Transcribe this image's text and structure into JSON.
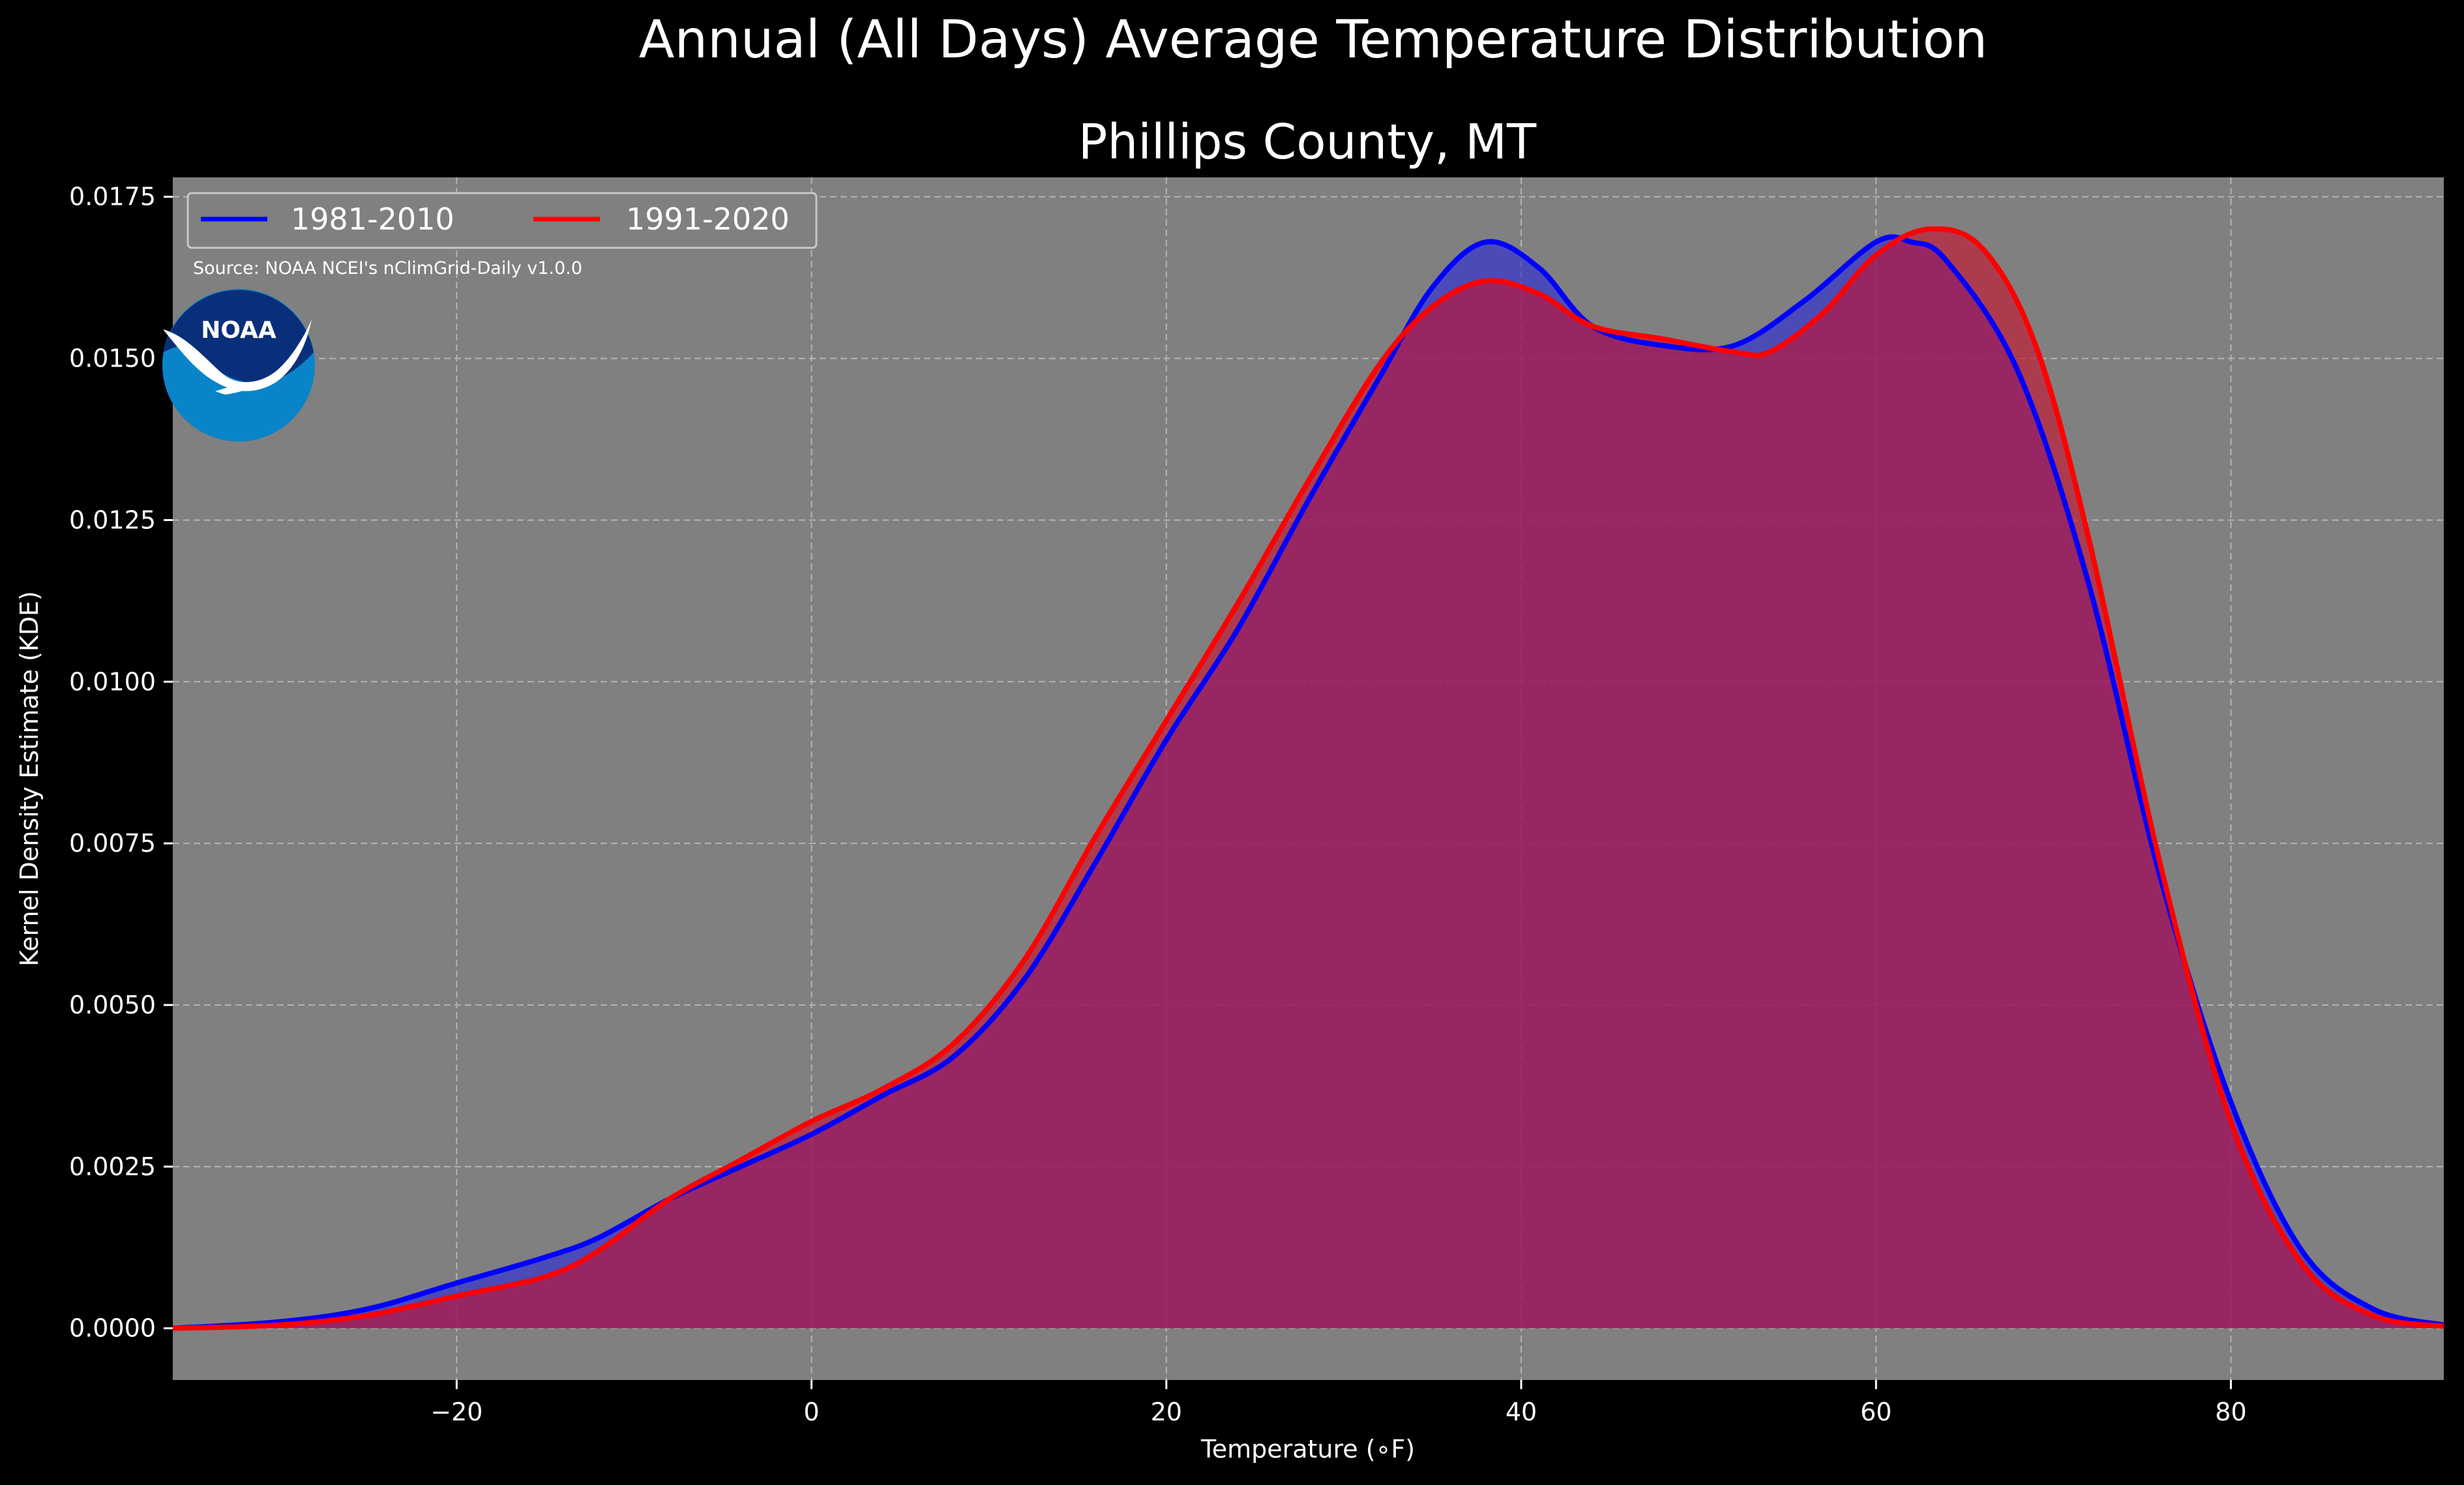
{
  "chart_data": {
    "type": "area",
    "title": "Annual (All Days) Average Temperature Distribution",
    "subtitle": "Phillips County, MT",
    "xlabel": "Temperature (∘F)",
    "ylabel": "Kernel Density Estimate (KDE)",
    "xlim": [
      -36,
      92
    ],
    "ylim": [
      -0.0008,
      0.0178
    ],
    "x_ticks": [
      -20,
      0,
      20,
      40,
      60,
      80
    ],
    "x_tick_labels": [
      "−20",
      "0",
      "20",
      "40",
      "60",
      "80"
    ],
    "y_ticks": [
      0.0,
      0.0025,
      0.005,
      0.0075,
      0.01,
      0.0125,
      0.015,
      0.0175
    ],
    "y_tick_labels": [
      "0.0000",
      "0.0025",
      "0.0050",
      "0.0075",
      "0.0100",
      "0.0125",
      "0.0150",
      "0.0175"
    ],
    "grid": true,
    "legend_position": "top-left",
    "source_note": "Source: NOAA NCEI's nClimGrid-Daily v1.0.0",
    "logo_text": "NOAA",
    "series": [
      {
        "name": "1981-2010",
        "color": "#0000ff",
        "fill_color": "#2a2ad8",
        "points": [
          [
            -36,
            0.0
          ],
          [
            -30,
            0.0001
          ],
          [
            -25,
            0.0003
          ],
          [
            -20,
            0.0007
          ],
          [
            -15,
            0.0011
          ],
          [
            -12,
            0.0014
          ],
          [
            -8,
            0.002
          ],
          [
            -4,
            0.0025
          ],
          [
            0,
            0.003
          ],
          [
            4,
            0.0036
          ],
          [
            8,
            0.0042
          ],
          [
            12,
            0.0054
          ],
          [
            16,
            0.0072
          ],
          [
            20,
            0.0091
          ],
          [
            24,
            0.0108
          ],
          [
            28,
            0.0128
          ],
          [
            32,
            0.0147
          ],
          [
            35,
            0.0161
          ],
          [
            38,
            0.0168
          ],
          [
            41,
            0.0164
          ],
          [
            44,
            0.0155
          ],
          [
            48,
            0.0152
          ],
          [
            52,
            0.0152
          ],
          [
            56,
            0.0159
          ],
          [
            60,
            0.0168
          ],
          [
            62,
            0.0168
          ],
          [
            64,
            0.0165
          ],
          [
            68,
            0.0148
          ],
          [
            72,
            0.0115
          ],
          [
            76,
            0.007
          ],
          [
            80,
            0.0035
          ],
          [
            84,
            0.0012
          ],
          [
            88,
            0.0003
          ],
          [
            92,
            5e-05
          ]
        ]
      },
      {
        "name": "1991-2020",
        "color": "#ff0000",
        "fill_color": "#c8102e",
        "points": [
          [
            -36,
            0.0
          ],
          [
            -30,
            5e-05
          ],
          [
            -25,
            0.0002
          ],
          [
            -20,
            0.0005
          ],
          [
            -15,
            0.0008
          ],
          [
            -12,
            0.0012
          ],
          [
            -8,
            0.002
          ],
          [
            -4,
            0.0026
          ],
          [
            0,
            0.0032
          ],
          [
            4,
            0.0037
          ],
          [
            8,
            0.0044
          ],
          [
            12,
            0.0057
          ],
          [
            16,
            0.0076
          ],
          [
            20,
            0.0094
          ],
          [
            24,
            0.0112
          ],
          [
            28,
            0.0131
          ],
          [
            32,
            0.0149
          ],
          [
            35,
            0.0158
          ],
          [
            38,
            0.0162
          ],
          [
            41,
            0.016
          ],
          [
            44,
            0.0155
          ],
          [
            48,
            0.0153
          ],
          [
            52,
            0.0151
          ],
          [
            54,
            0.0151
          ],
          [
            57,
            0.0157
          ],
          [
            60,
            0.0166
          ],
          [
            63,
            0.017
          ],
          [
            66,
            0.0167
          ],
          [
            69,
            0.0152
          ],
          [
            72,
            0.0122
          ],
          [
            76,
            0.0072
          ],
          [
            80,
            0.0032
          ],
          [
            84,
            0.001
          ],
          [
            88,
            0.0002
          ],
          [
            92,
            3e-05
          ]
        ]
      }
    ]
  }
}
